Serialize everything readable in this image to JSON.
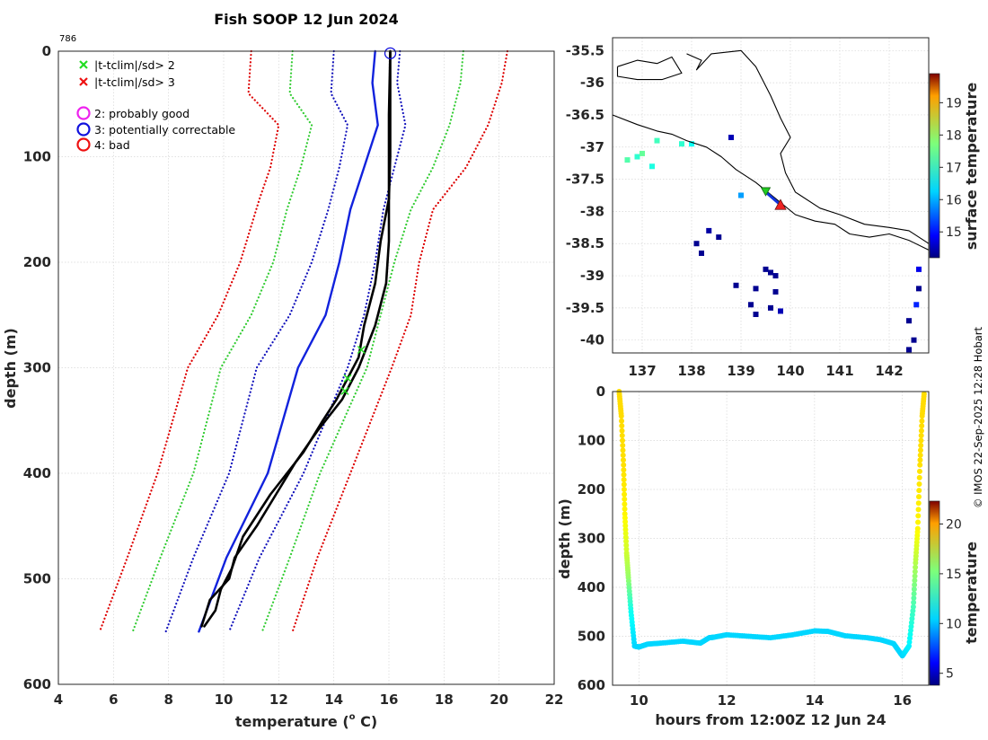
{
  "chart_data": [
    {
      "type": "line",
      "name": "profile",
      "title": "Fish SOOP 12 Jun 2024",
      "corner_label": "786",
      "xlabel": "temperature (",
      "xlabel_sup": "o",
      "xlabel_end": " C)",
      "ylabel": "depth (m)",
      "xlim": [
        4,
        22
      ],
      "ylim": [
        600,
        0
      ],
      "xticks": [
        "4",
        "6",
        "8",
        "10",
        "12",
        "14",
        "16",
        "18",
        "20",
        "22"
      ],
      "yticks": [
        "0",
        "100",
        "200",
        "300",
        "400",
        "500",
        "600"
      ],
      "legend": [
        {
          "label": "|t-tclim|/sd> 2",
          "marker": "x",
          "color": "#22dd22"
        },
        {
          "label": "|t-tclim|/sd> 3",
          "marker": "x",
          "color": "#ee1111"
        },
        {
          "label": "2: probably good",
          "marker": "o",
          "color": "#ee22ee"
        },
        {
          "label": "3: potentially correctable",
          "marker": "o",
          "color": "#1111dd"
        },
        {
          "label": "4: bad",
          "marker": "o",
          "color": "#ee1111"
        }
      ],
      "series": [
        {
          "name": "clim-3sd-low",
          "style": "dotted",
          "color": "#dd0000",
          "points": [
            [
              11,
              0
            ],
            [
              10.9,
              40
            ],
            [
              12,
              70
            ],
            [
              11.7,
              110
            ],
            [
              11.3,
              140
            ],
            [
              10.6,
              200
            ],
            [
              9.8,
              250
            ],
            [
              8.7,
              300
            ],
            [
              7.6,
              400
            ],
            [
              6.5,
              480
            ],
            [
              5.5,
              550
            ]
          ]
        },
        {
          "name": "clim-2sd-low",
          "style": "dotted",
          "color": "#33cc33",
          "points": [
            [
              12.5,
              0
            ],
            [
              12.4,
              40
            ],
            [
              13.2,
              70
            ],
            [
              12.8,
              110
            ],
            [
              12.3,
              150
            ],
            [
              11.8,
              200
            ],
            [
              11,
              250
            ],
            [
              9.9,
              300
            ],
            [
              8.9,
              400
            ],
            [
              7.7,
              480
            ],
            [
              6.7,
              550
            ]
          ]
        },
        {
          "name": "clim-1sd-low",
          "style": "dotted",
          "color": "#1111bb",
          "points": [
            [
              14,
              0
            ],
            [
              13.9,
              40
            ],
            [
              14.5,
              70
            ],
            [
              14.2,
              110
            ],
            [
              13.8,
              150
            ],
            [
              13.2,
              200
            ],
            [
              12.4,
              250
            ],
            [
              11.2,
              300
            ],
            [
              10.2,
              400
            ],
            [
              8.9,
              480
            ],
            [
              7.9,
              550
            ]
          ]
        },
        {
          "name": "clim-mean",
          "style": "solid",
          "color": "#1122dd",
          "points": [
            [
              15.5,
              0
            ],
            [
              15.4,
              30
            ],
            [
              15.6,
              70
            ],
            [
              15.1,
              110
            ],
            [
              14.6,
              150
            ],
            [
              14.2,
              200
            ],
            [
              13.7,
              250
            ],
            [
              12.7,
              300
            ],
            [
              11.6,
              400
            ],
            [
              10.1,
              480
            ],
            [
              9.1,
              550
            ]
          ]
        },
        {
          "name": "clim-1sd-high",
          "style": "dotted",
          "color": "#1111bb",
          "points": [
            [
              16.4,
              0
            ],
            [
              16.3,
              30
            ],
            [
              16.6,
              70
            ],
            [
              16.2,
              110
            ],
            [
              15.8,
              150
            ],
            [
              15.5,
              200
            ],
            [
              15.1,
              250
            ],
            [
              14.5,
              300
            ],
            [
              12.9,
              400
            ],
            [
              11.3,
              480
            ],
            [
              10.2,
              550
            ]
          ]
        },
        {
          "name": "clim-2sd-high",
          "style": "dotted",
          "color": "#33cc33",
          "points": [
            [
              18.7,
              0
            ],
            [
              18.6,
              30
            ],
            [
              18.2,
              70
            ],
            [
              17.6,
              110
            ],
            [
              16.8,
              150
            ],
            [
              16.2,
              200
            ],
            [
              15.7,
              250
            ],
            [
              15.2,
              300
            ],
            [
              13.5,
              400
            ],
            [
              12.4,
              480
            ],
            [
              11.4,
              550
            ]
          ]
        },
        {
          "name": "clim-3sd-high",
          "style": "dotted",
          "color": "#dd0000",
          "points": [
            [
              20.3,
              0
            ],
            [
              20.1,
              30
            ],
            [
              19.6,
              70
            ],
            [
              18.8,
              110
            ],
            [
              17.6,
              150
            ],
            [
              17.1,
              200
            ],
            [
              16.8,
              250
            ],
            [
              16.1,
              300
            ],
            [
              14.6,
              400
            ],
            [
              13.4,
              480
            ],
            [
              12.5,
              550
            ]
          ]
        },
        {
          "name": "observed-down",
          "style": "solid",
          "color": "#000000",
          "points": [
            [
              16.05,
              0
            ],
            [
              16.05,
              50
            ],
            [
              16.05,
              100
            ],
            [
              16.0,
              140
            ],
            [
              15.7,
              180
            ],
            [
              15.5,
              220
            ],
            [
              15.1,
              260
            ],
            [
              14.9,
              290
            ],
            [
              14.1,
              330
            ],
            [
              13.6,
              350
            ],
            [
              12.9,
              380
            ],
            [
              11.7,
              420
            ],
            [
              10.7,
              460
            ],
            [
              10.3,
              490
            ],
            [
              9.9,
              510
            ],
            [
              9.7,
              530
            ],
            [
              9.3,
              545
            ]
          ]
        },
        {
          "name": "observed-up",
          "style": "solid",
          "color": "#000000",
          "points": [
            [
              9.2,
              545
            ],
            [
              9.5,
              520
            ],
            [
              10.2,
              500
            ],
            [
              10.4,
              480
            ],
            [
              11.2,
              450
            ],
            [
              11.9,
              420
            ],
            [
              12.6,
              390
            ],
            [
              13.4,
              360
            ],
            [
              14.3,
              330
            ],
            [
              14.9,
              300
            ],
            [
              15.5,
              260
            ],
            [
              15.9,
              220
            ],
            [
              16.0,
              180
            ],
            [
              16.0,
              140
            ],
            [
              16.0,
              60
            ],
            [
              16.05,
              0
            ]
          ]
        }
      ],
      "flags": [
        {
          "marker": "x",
          "color": "#22dd22",
          "t": 15.0,
          "depth": 283
        },
        {
          "marker": "x",
          "color": "#22dd22",
          "t": 14.5,
          "depth": 310
        },
        {
          "marker": "x",
          "color": "#22dd22",
          "t": 14.4,
          "depth": 322
        },
        {
          "marker": "o",
          "color": "#1111dd",
          "t": 16.05,
          "depth": 2
        }
      ]
    },
    {
      "type": "heatmap",
      "name": "map",
      "xlim": [
        136.4,
        142.8
      ],
      "ylim": [
        -40.2,
        -35.3
      ],
      "xticks": [
        "137",
        "138",
        "139",
        "140",
        "141",
        "142"
      ],
      "yticks": [
        "-35.5",
        "-36",
        "-36.5",
        "-37",
        "-37.5",
        "-38",
        "-38.5",
        "-39",
        "-39.5",
        "-40"
      ],
      "colorbar_label": "surface temperature",
      "colorbar_range": [
        14.2,
        19.9
      ],
      "colorbar_ticks": [
        "15",
        "16",
        "17",
        "18",
        "19"
      ],
      "track_start": {
        "lon": 139.5,
        "lat": -37.7,
        "color": "#22cc22"
      },
      "track_end": {
        "lon": 139.8,
        "lat": -37.9,
        "color": "#ee2222"
      },
      "cells": [
        {
          "lon": 136.7,
          "lat": -37.2,
          "v": 16.8
        },
        {
          "lon": 136.9,
          "lat": -37.15,
          "v": 16.6
        },
        {
          "lon": 137.0,
          "lat": -37.1,
          "v": 16.9
        },
        {
          "lon": 137.2,
          "lat": -37.3,
          "v": 16.5
        },
        {
          "lon": 137.3,
          "lat": -36.9,
          "v": 16.7
        },
        {
          "lon": 137.8,
          "lat": -36.95,
          "v": 16.6
        },
        {
          "lon": 138.0,
          "lat": -36.95,
          "v": 16.4
        },
        {
          "lon": 138.8,
          "lat": -36.85,
          "v": 14.5
        },
        {
          "lon": 139.0,
          "lat": -37.75,
          "v": 15.8
        },
        {
          "lon": 138.35,
          "lat": -38.3,
          "v": 14.4
        },
        {
          "lon": 138.55,
          "lat": -38.4,
          "v": 14.3
        },
        {
          "lon": 138.1,
          "lat": -38.5,
          "v": 14.3
        },
        {
          "lon": 138.2,
          "lat": -38.65,
          "v": 14.3
        },
        {
          "lon": 139.5,
          "lat": -38.9,
          "v": 14.3
        },
        {
          "lon": 139.6,
          "lat": -38.95,
          "v": 14.3
        },
        {
          "lon": 139.7,
          "lat": -39.0,
          "v": 14.3
        },
        {
          "lon": 139.3,
          "lat": -39.2,
          "v": 14.3
        },
        {
          "lon": 139.7,
          "lat": -39.25,
          "v": 14.3
        },
        {
          "lon": 139.2,
          "lat": -39.45,
          "v": 14.3
        },
        {
          "lon": 139.3,
          "lat": -39.6,
          "v": 14.3
        },
        {
          "lon": 139.6,
          "lat": -39.5,
          "v": 14.3
        },
        {
          "lon": 139.8,
          "lat": -39.55,
          "v": 14.5
        },
        {
          "lon": 138.9,
          "lat": -39.15,
          "v": 14.3
        },
        {
          "lon": 142.6,
          "lat": -38.9,
          "v": 14.8
        },
        {
          "lon": 142.55,
          "lat": -39.45,
          "v": 15.1
        },
        {
          "lon": 142.6,
          "lat": -39.2,
          "v": 14.3
        },
        {
          "lon": 142.4,
          "lat": -39.7,
          "v": 14.3
        },
        {
          "lon": 142.5,
          "lat": -40.0,
          "v": 14.3
        },
        {
          "lon": 142.4,
          "lat": -40.15,
          "v": 14.3
        }
      ],
      "coast": [
        [
          [
            136.4,
            -36.5
          ],
          [
            136.9,
            -36.65
          ],
          [
            137.3,
            -36.75
          ],
          [
            137.6,
            -36.8
          ],
          [
            137.9,
            -36.9
          ],
          [
            138.3,
            -37.0
          ],
          [
            138.6,
            -37.15
          ],
          [
            138.9,
            -37.35
          ],
          [
            139.3,
            -37.55
          ],
          [
            139.7,
            -37.8
          ],
          [
            140.1,
            -38.05
          ],
          [
            140.5,
            -38.15
          ],
          [
            140.9,
            -38.2
          ],
          [
            141.2,
            -38.35
          ],
          [
            141.6,
            -38.4
          ],
          [
            142.0,
            -38.35
          ],
          [
            142.4,
            -38.45
          ],
          [
            142.8,
            -38.6
          ]
        ],
        [
          [
            136.5,
            -35.75
          ],
          [
            136.9,
            -35.65
          ],
          [
            137.3,
            -35.7
          ],
          [
            137.6,
            -35.6
          ],
          [
            137.8,
            -35.85
          ],
          [
            137.4,
            -35.95
          ],
          [
            136.9,
            -35.95
          ],
          [
            136.5,
            -35.9
          ],
          [
            136.5,
            -35.75
          ]
        ],
        [
          [
            137.9,
            -35.55
          ],
          [
            138.2,
            -35.65
          ],
          [
            138.1,
            -35.8
          ],
          [
            138.4,
            -35.55
          ],
          [
            139.0,
            -35.5
          ],
          [
            139.3,
            -35.75
          ],
          [
            139.6,
            -36.2
          ],
          [
            139.8,
            -36.55
          ],
          [
            140.0,
            -36.85
          ],
          [
            139.8,
            -37.1
          ],
          [
            139.9,
            -37.4
          ],
          [
            140.1,
            -37.7
          ],
          [
            140.6,
            -37.95
          ],
          [
            141.0,
            -38.05
          ],
          [
            141.5,
            -38.2
          ],
          [
            142.0,
            -38.25
          ],
          [
            142.4,
            -38.3
          ],
          [
            142.8,
            -38.5
          ]
        ]
      ]
    },
    {
      "type": "line",
      "name": "section",
      "xlabel": "hours from 12:00Z 12 Jun 24",
      "ylabel": "depth (m)",
      "xlim": [
        9.4,
        16.6
      ],
      "ylim": [
        600,
        0
      ],
      "xticks": [
        "10",
        "12",
        "14",
        "16"
      ],
      "yticks": [
        "0",
        "100",
        "200",
        "300",
        "400",
        "500",
        "600"
      ],
      "colorbar_label": "temperature",
      "colorbar_range": [
        3.8,
        22.3
      ],
      "colorbar_ticks": [
        "5",
        "10",
        "15",
        "20"
      ],
      "points": [
        [
          9.55,
          0,
          16.0
        ],
        [
          9.6,
          50,
          16.0
        ],
        [
          9.65,
          150,
          15.9
        ],
        [
          9.68,
          250,
          15.5
        ],
        [
          9.72,
          330,
          14.5
        ],
        [
          9.76,
          380,
          13.5
        ],
        [
          9.82,
          450,
          11.0
        ],
        [
          9.9,
          520,
          10.0
        ],
        [
          10.0,
          522,
          10.0
        ],
        [
          10.2,
          516,
          10.0
        ],
        [
          10.5,
          514,
          10.0
        ],
        [
          11.0,
          510,
          10.0
        ],
        [
          11.4,
          514,
          10.0
        ],
        [
          11.6,
          503,
          10.0
        ],
        [
          11.7,
          502,
          10.0
        ],
        [
          12.0,
          497,
          10.0
        ],
        [
          12.5,
          500,
          10.0
        ],
        [
          13.0,
          503,
          10.0
        ],
        [
          13.5,
          497,
          10.0
        ],
        [
          14.0,
          489,
          10.0
        ],
        [
          14.3,
          490,
          10.0
        ],
        [
          14.7,
          499,
          10.0
        ],
        [
          15.2,
          503,
          10.0
        ],
        [
          15.5,
          507,
          10.0
        ],
        [
          15.8,
          515,
          10.0
        ],
        [
          16.0,
          540,
          10.0
        ],
        [
          16.15,
          520,
          10.5
        ],
        [
          16.25,
          440,
          12.0
        ],
        [
          16.3,
          350,
          14.0
        ],
        [
          16.35,
          280,
          15.5
        ],
        [
          16.4,
          150,
          15.9
        ],
        [
          16.45,
          50,
          16.0
        ],
        [
          16.5,
          0,
          16.0
        ]
      ]
    }
  ],
  "footer": {
    "imos_text": "© IMOS 22-Sep-2025 12:28 Hobart"
  }
}
